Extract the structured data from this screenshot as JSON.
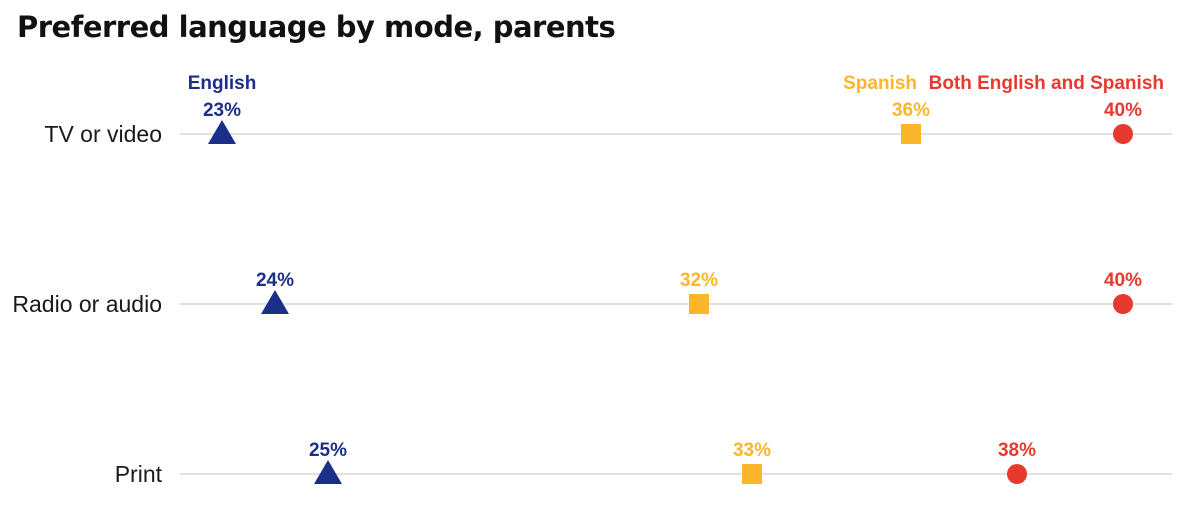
{
  "chart_data": {
    "type": "scatter",
    "title": "Preferred language by mode, parents",
    "categories": [
      "TV or video",
      "Radio or audio",
      "Print"
    ],
    "series": [
      {
        "name": "English",
        "values": [
          23,
          24,
          25
        ],
        "labels": [
          "23%",
          "24%",
          "25%"
        ],
        "color": "#1b2f88",
        "marker": "triangle"
      },
      {
        "name": "Spanish",
        "values": [
          36,
          32,
          33
        ],
        "labels": [
          "36%",
          "32%",
          "33%"
        ],
        "color": "#fbb62b",
        "marker": "square"
      },
      {
        "name": "Both English and Spanish",
        "values": [
          40,
          40,
          38
        ],
        "labels": [
          "40%",
          "40%",
          "38%"
        ],
        "color": "#e8392f",
        "marker": "circle"
      }
    ],
    "xlim": [
      20,
      41
    ],
    "xlabel": "",
    "ylabel": "",
    "grid": true,
    "legend": "inline labels above first row"
  }
}
